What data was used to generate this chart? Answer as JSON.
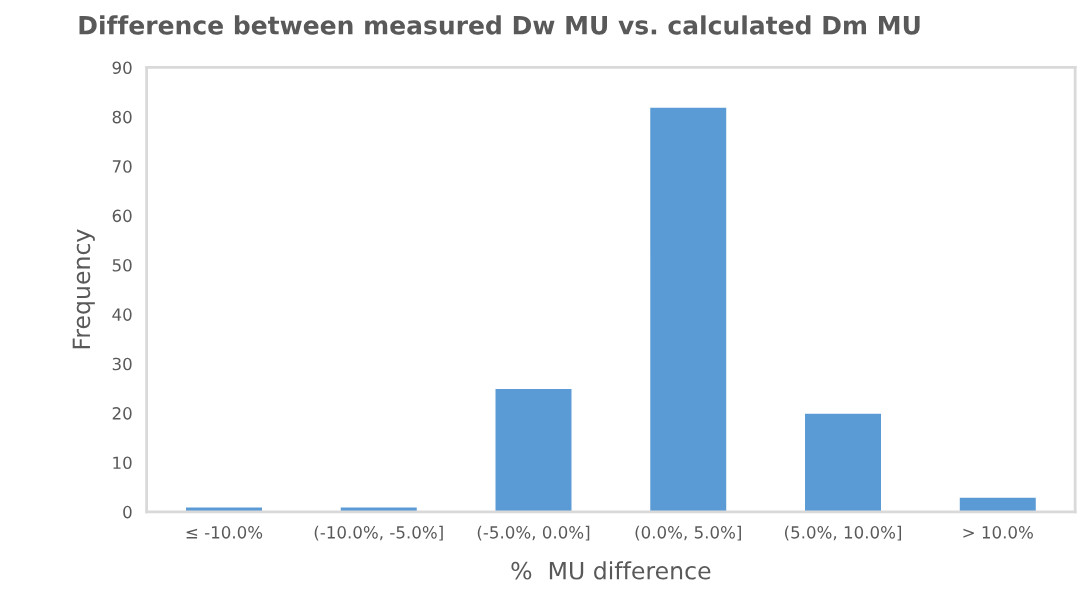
{
  "chart_data": {
    "type": "bar",
    "title": "Difference between measured Dw MU vs. calculated Dm MU",
    "xlabel": "%  MU difference",
    "ylabel": "Frequency",
    "categories": [
      "≤ -10.0%",
      "(-10.0%, -5.0%]",
      "(-5.0%, 0.0%]",
      "(0.0%, 5.0%]",
      "(5.0%, 10.0%]",
      "> 10.0%"
    ],
    "values": [
      1,
      1,
      25,
      82,
      20,
      3
    ],
    "color": "#5b9bd5",
    "ylim": [
      0,
      90
    ],
    "yticks": [
      0,
      10,
      20,
      30,
      40,
      50,
      60,
      70,
      80,
      90
    ],
    "grid": false
  }
}
